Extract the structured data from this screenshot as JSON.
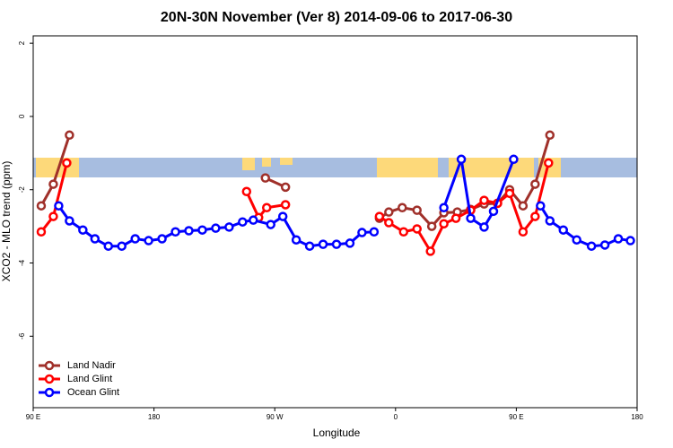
{
  "chart_data": {
    "type": "line",
    "title": "20N-30N November (Ver 8)   2014-09-06 to 2017-06-30",
    "x_label": "Longitude",
    "y_label": "XCO2 - MLO trend (ppm)",
    "xlim": [
      90,
      540
    ],
    "xticks": [
      {
        "value": 90,
        "label": "90 E"
      },
      180,
      {
        "value": 270,
        "label": "90 W"
      },
      {
        "value": 360,
        "label": "0"
      },
      {
        "value": 450,
        "label": "90 E"
      },
      {
        "value": 540,
        "label": "180"
      }
    ],
    "ylim": [
      -7.95,
      2.2
    ],
    "yticks": [
      2,
      0,
      -2,
      -4,
      -6
    ],
    "legend": "bottom-left",
    "series": [
      {
        "name": "Land Nadir",
        "color": "#a0302a",
        "x": [
          96,
          105,
          117,
          null,
          263,
          278,
          null,
          348,
          355,
          365,
          376,
          387,
          396,
          406,
          416,
          426,
          436,
          445,
          455,
          464,
          475
        ],
        "values": [
          -2.44,
          -1.85,
          -0.51,
          null,
          -1.68,
          -1.93,
          null,
          -2.78,
          -2.61,
          -2.49,
          -2.56,
          -3.0,
          -2.63,
          -2.61,
          -2.54,
          -2.39,
          -2.37,
          -2.0,
          -2.44,
          -1.85,
          -0.51
        ]
      },
      {
        "name": "Land Glint",
        "color": "#ff0000",
        "x": [
          96,
          105,
          115,
          null,
          249,
          258,
          264,
          278,
          null,
          348,
          355,
          366,
          376,
          386,
          396,
          405,
          416,
          426,
          436,
          445,
          455,
          464,
          474
        ],
        "values": [
          -3.15,
          -2.73,
          -1.27,
          null,
          -2.05,
          -2.76,
          -2.49,
          -2.41,
          null,
          -2.73,
          -2.9,
          -3.15,
          -3.07,
          -3.68,
          -2.93,
          -2.78,
          -2.56,
          -2.29,
          -2.37,
          -2.1,
          -3.15,
          -2.73,
          -1.27
        ]
      },
      {
        "name": "Ocean Glint",
        "color": "#0000ff",
        "x": [
          109,
          117,
          127,
          136,
          146,
          156,
          166,
          176,
          186,
          196,
          206,
          216,
          226,
          236,
          246,
          254,
          267,
          276,
          286,
          296,
          306,
          316,
          326,
          335,
          344,
          null,
          396,
          409,
          416,
          426,
          433,
          448,
          null,
          468,
          475,
          485,
          495,
          506,
          516,
          526,
          535
        ],
        "values": [
          -2.44,
          -2.85,
          -3.1,
          -3.34,
          -3.54,
          -3.54,
          -3.34,
          -3.39,
          -3.34,
          -3.15,
          -3.12,
          -3.1,
          -3.05,
          -3.02,
          -2.88,
          -2.83,
          -2.95,
          -2.73,
          -3.37,
          -3.54,
          -3.49,
          -3.49,
          -3.46,
          -3.17,
          -3.15,
          null,
          -2.49,
          -1.17,
          -2.78,
          -3.02,
          -2.59,
          -1.17,
          null,
          -2.44,
          -2.85,
          -3.1,
          -3.37,
          -3.54,
          -3.51,
          -3.34,
          -3.39
        ]
      }
    ]
  }
}
